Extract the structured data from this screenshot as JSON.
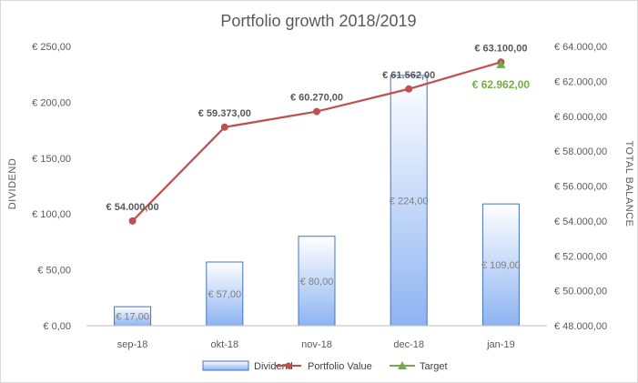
{
  "chart_data": {
    "type": "bar",
    "title": "Portfolio growth 2018/2019",
    "categories": [
      "sep-18",
      "okt-18",
      "nov-18",
      "dec-18",
      "jan-19"
    ],
    "y_left": {
      "label": "DIVIDEND",
      "ylim": [
        0,
        250
      ],
      "ticks": [
        0,
        50,
        100,
        150,
        200,
        250
      ],
      "tick_labels": [
        "€ 0,00",
        "€ 50,00",
        "€ 100,00",
        "€ 150,00",
        "€ 200,00",
        "€ 250,00"
      ]
    },
    "y_right": {
      "label": "TOTAL BALANCE",
      "ylim": [
        48000,
        64000
      ],
      "ticks": [
        48000,
        50000,
        52000,
        54000,
        56000,
        58000,
        60000,
        62000,
        64000
      ],
      "tick_labels": [
        "€ 48.000,00",
        "€ 50.000,00",
        "€ 52.000,00",
        "€ 54.000,00",
        "€ 56.000,00",
        "€ 58.000,00",
        "€ 60.000,00",
        "€ 62.000,00",
        "€ 64.000,00"
      ]
    },
    "series": [
      {
        "name": "Dividend",
        "type": "bar",
        "axis": "left",
        "values": [
          17,
          57,
          80,
          224,
          109
        ],
        "labels": [
          "€ 17,00",
          "€ 57,00",
          "€ 80,00",
          "€ 224,00",
          "€ 109,00"
        ]
      },
      {
        "name": "Portfolio Value",
        "type": "line",
        "axis": "right",
        "values": [
          54000,
          59373,
          60270,
          61562,
          63100
        ],
        "labels": [
          "€ 54.000,00",
          "€ 59.373,00",
          "€ 60.270,00",
          "€ 61.562,00",
          "€ 63.100,00"
        ]
      },
      {
        "name": "Target",
        "type": "line",
        "axis": "right",
        "values": [
          null,
          null,
          null,
          null,
          62962
        ],
        "labels": [
          "",
          "",
          "",
          "",
          "€ 62.962,00"
        ]
      }
    ],
    "legend": "bottom",
    "grid": false,
    "colors": {
      "bar_top": "#ffffff",
      "bar_bottom": "#8db4f2",
      "bar_border": "#4472c4",
      "line": "#c0504d",
      "target": "#70ad47",
      "axis": "#bfbfbf",
      "text": "#595959"
    }
  }
}
